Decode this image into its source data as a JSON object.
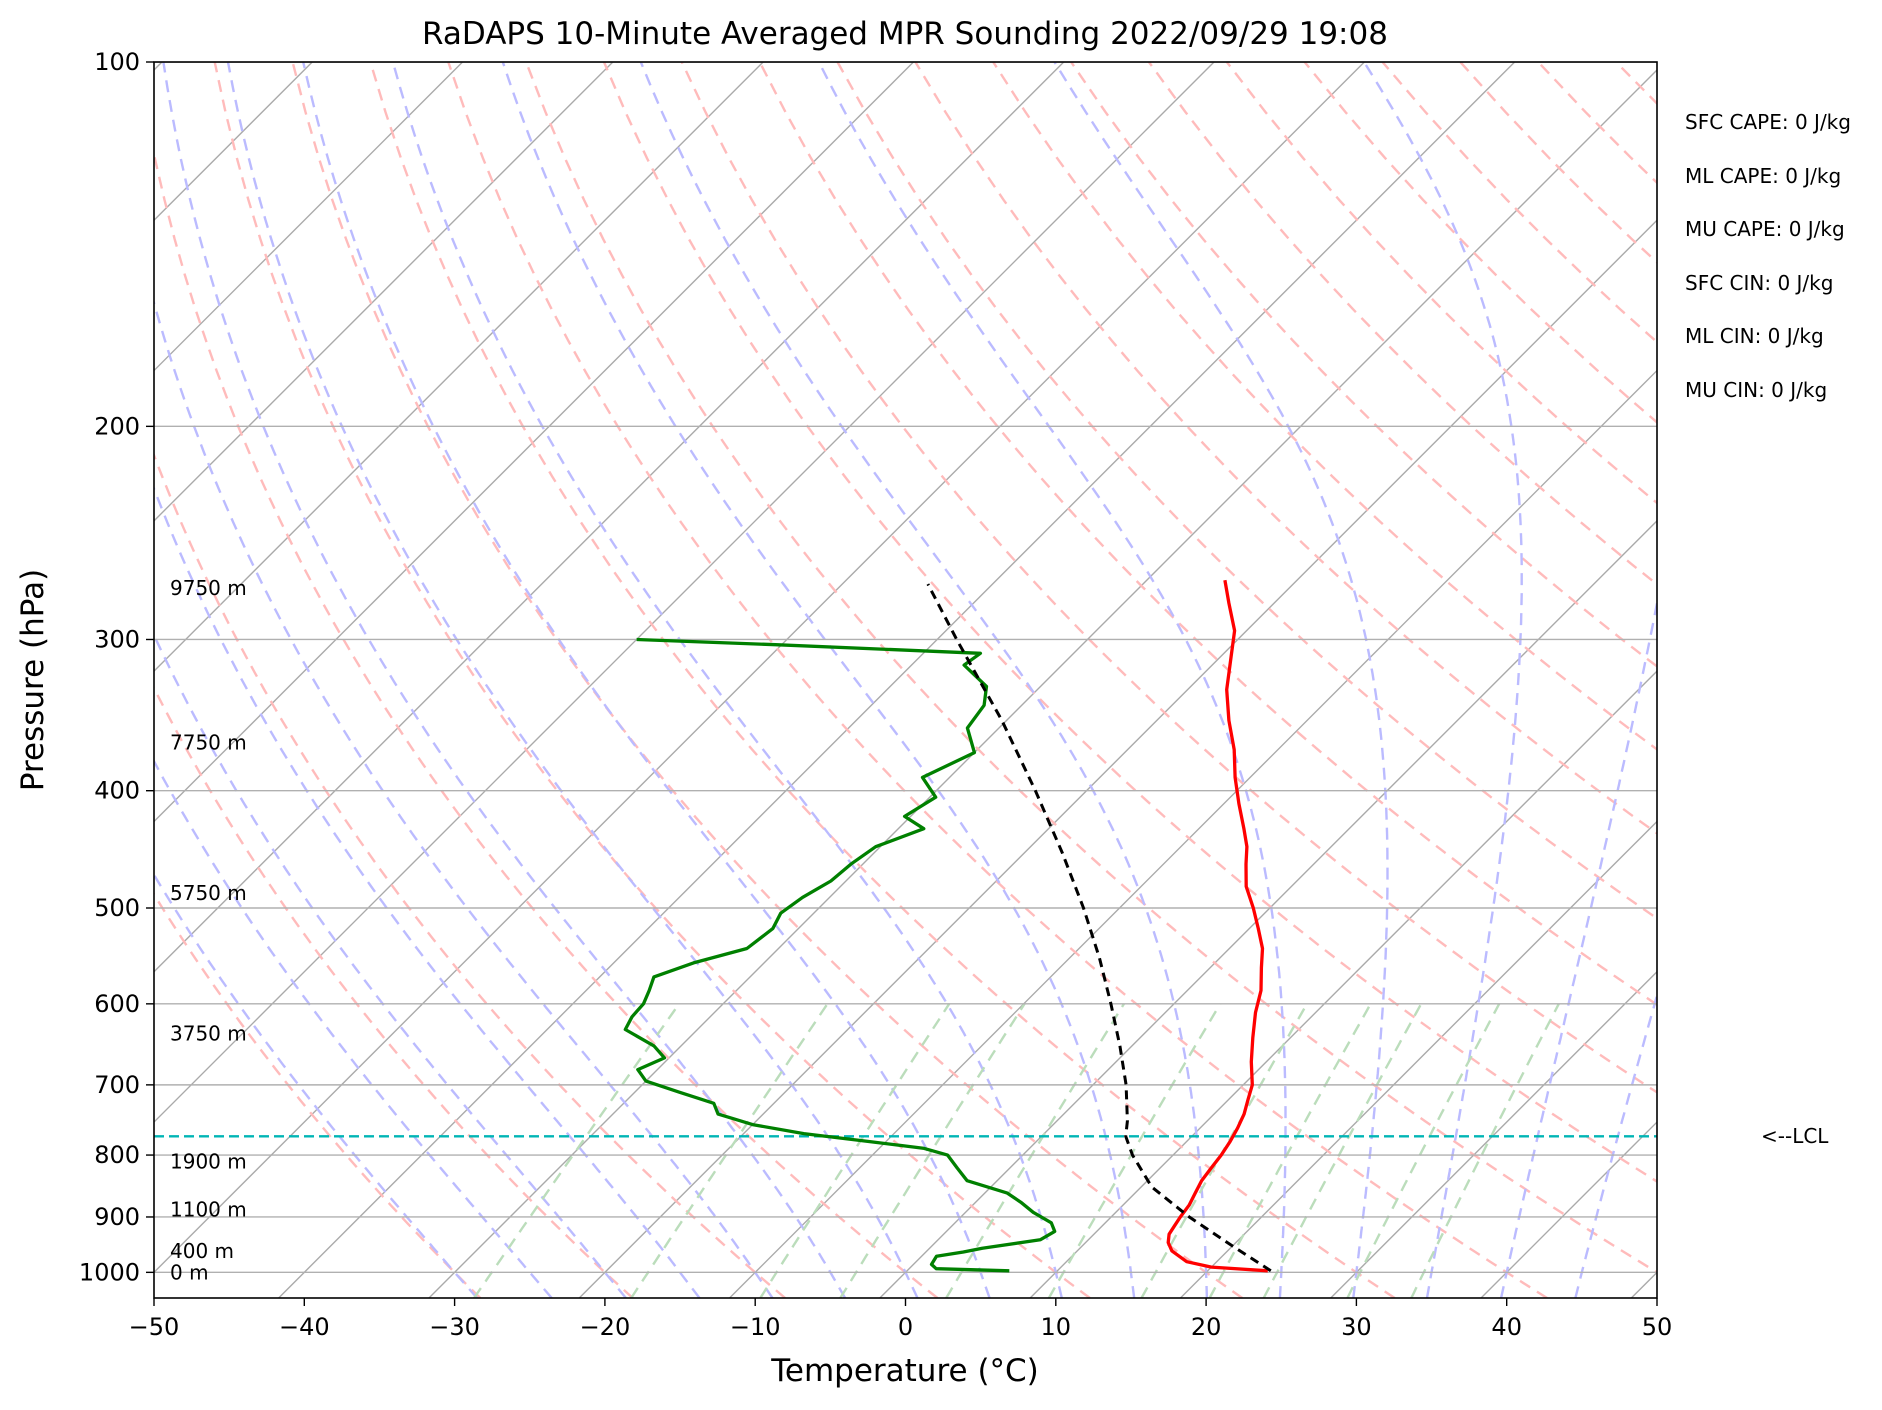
{
  "chart_data": {
    "type": "skew-t",
    "title": "RaDAPS 10-Minute Averaged MPR Sounding 2022/09/29 19:08",
    "xlabel": "Temperature (°C)",
    "ylabel": "Pressure (hPa)",
    "xlim": [
      -50,
      50
    ],
    "ylim": [
      1050,
      100
    ],
    "x_scale": "linear, skewed",
    "y_scale": "log",
    "xticks": [
      -50,
      -40,
      -30,
      -20,
      -10,
      0,
      10,
      20,
      30,
      40,
      50
    ],
    "xtick_labels": [
      "−50",
      "−40",
      "−30",
      "−20",
      "−10",
      "0",
      "10",
      "20",
      "30",
      "40",
      "50"
    ],
    "yticks": [
      100,
      200,
      300,
      400,
      500,
      600,
      700,
      800,
      900,
      1000
    ],
    "ytick_labels": [
      "100",
      "200",
      "300",
      "400",
      "500",
      "600",
      "700",
      "800",
      "900",
      "1000"
    ],
    "grid": true,
    "background_lines": {
      "isotherms": {
        "color": "#aaaaaa",
        "style": "solid"
      },
      "dry_adiabats": {
        "color": "#ffbbbb",
        "style": "dashed"
      },
      "moist_adiabats": {
        "color": "#bbbbff",
        "style": "dashed"
      },
      "mixing_ratio": {
        "color": "#bbddbb",
        "style": "dashed"
      }
    },
    "series": [
      {
        "color": "#ff0000",
        "points": [
          {
            "p": 997,
            "t": 24.0
          },
          {
            "p": 990,
            "t": 20.0
          },
          {
            "p": 980,
            "t": 18.0
          },
          {
            "p": 960,
            "t": 16.3
          },
          {
            "p": 945,
            "t": 15.5
          },
          {
            "p": 930,
            "t": 15.0
          },
          {
            "p": 915,
            "t": 14.8
          },
          {
            "p": 900,
            "t": 14.6
          },
          {
            "p": 880,
            "t": 14.4
          },
          {
            "p": 860,
            "t": 14.0
          },
          {
            "p": 840,
            "t": 13.6
          },
          {
            "p": 820,
            "t": 13.4
          },
          {
            "p": 800,
            "t": 13.2
          },
          {
            "p": 780,
            "t": 12.9
          },
          {
            "p": 760,
            "t": 12.5
          },
          {
            "p": 740,
            "t": 12.0
          },
          {
            "p": 720,
            "t": 11.3
          },
          {
            "p": 700,
            "t": 10.6
          },
          {
            "p": 670,
            "t": 9.0
          },
          {
            "p": 640,
            "t": 7.5
          },
          {
            "p": 610,
            "t": 6.0
          },
          {
            "p": 585,
            "t": 4.9
          },
          {
            "p": 560,
            "t": 3.4
          },
          {
            "p": 540,
            "t": 2.2
          },
          {
            "p": 520,
            "t": 0.6
          },
          {
            "p": 500,
            "t": -1.1
          },
          {
            "p": 480,
            "t": -3.0
          },
          {
            "p": 460,
            "t": -4.5
          },
          {
            "p": 445,
            "t": -5.6
          },
          {
            "p": 430,
            "t": -7.0
          },
          {
            "p": 410,
            "t": -9.0
          },
          {
            "p": 390,
            "t": -11.0
          },
          {
            "p": 370,
            "t": -12.9
          },
          {
            "p": 350,
            "t": -15.2
          },
          {
            "p": 330,
            "t": -17.4
          },
          {
            "p": 310,
            "t": -19.3
          },
          {
            "p": 295,
            "t": -20.8
          },
          {
            "p": 280,
            "t": -23.0
          },
          {
            "p": 268,
            "t": -24.8
          }
        ]
      },
      {
        "color": "#008000",
        "points": [
          {
            "p": 997,
            "t": 6.8
          },
          {
            "p": 993,
            "t": 1.8
          },
          {
            "p": 985,
            "t": 1.2
          },
          {
            "p": 970,
            "t": 1.0
          },
          {
            "p": 962,
            "t": 2.5
          },
          {
            "p": 955,
            "t": 3.5
          },
          {
            "p": 940,
            "t": 6.8
          },
          {
            "p": 925,
            "t": 7.2
          },
          {
            "p": 910,
            "t": 6.4
          },
          {
            "p": 892,
            "t": 4.5
          },
          {
            "p": 875,
            "t": 3.0
          },
          {
            "p": 860,
            "t": 1.5
          },
          {
            "p": 840,
            "t": -2.0
          },
          {
            "p": 820,
            "t": -3.5
          },
          {
            "p": 800,
            "t": -5.0
          },
          {
            "p": 790,
            "t": -7.0
          },
          {
            "p": 780,
            "t": -11.0
          },
          {
            "p": 768,
            "t": -16.0
          },
          {
            "p": 755,
            "t": -20.0
          },
          {
            "p": 740,
            "t": -23.0
          },
          {
            "p": 725,
            "t": -24.0
          },
          {
            "p": 710,
            "t": -27.0
          },
          {
            "p": 695,
            "t": -30.0
          },
          {
            "p": 680,
            "t": -31.3
          },
          {
            "p": 665,
            "t": -30.3
          },
          {
            "p": 650,
            "t": -31.8
          },
          {
            "p": 630,
            "t": -34.8
          },
          {
            "p": 615,
            "t": -35.2
          },
          {
            "p": 600,
            "t": -35.3
          },
          {
            "p": 585,
            "t": -35.8
          },
          {
            "p": 570,
            "t": -36.4
          },
          {
            "p": 555,
            "t": -34.7
          },
          {
            "p": 540,
            "t": -32.1
          },
          {
            "p": 520,
            "t": -31.7
          },
          {
            "p": 505,
            "t": -32.2
          },
          {
            "p": 490,
            "t": -31.8
          },
          {
            "p": 475,
            "t": -31.0
          },
          {
            "p": 460,
            "t": -30.8
          },
          {
            "p": 445,
            "t": -30.3
          },
          {
            "p": 430,
            "t": -28.3
          },
          {
            "p": 420,
            "t": -30.4
          },
          {
            "p": 405,
            "t": -29.6
          },
          {
            "p": 390,
            "t": -31.8
          },
          {
            "p": 372,
            "t": -30.0
          },
          {
            "p": 355,
            "t": -32.1
          },
          {
            "p": 340,
            "t": -32.5
          },
          {
            "p": 328,
            "t": -33.6
          },
          {
            "p": 315,
            "t": -36.5
          },
          {
            "p": 308,
            "t": -36.2
          },
          {
            "p": 303,
            "t": -50.4
          },
          {
            "p": 300,
            "t": -60.0
          }
        ]
      },
      {
        "color": "#000000",
        "style": "dashed",
        "points": [
          {
            "p": 997,
            "t": 24.2
          },
          {
            "p": 950,
            "t": 19.9
          },
          {
            "p": 900,
            "t": 15.2
          },
          {
            "p": 850,
            "t": 10.7
          },
          {
            "p": 800,
            "t": 7.3
          },
          {
            "p": 772,
            "t": 5.6
          },
          {
            "p": 750,
            "t": 4.7
          },
          {
            "p": 700,
            "t": 2.2
          },
          {
            "p": 650,
            "t": -0.8
          },
          {
            "p": 600,
            "t": -4.2
          },
          {
            "p": 550,
            "t": -8.0
          },
          {
            "p": 500,
            "t": -12.4
          },
          {
            "p": 450,
            "t": -17.5
          },
          {
            "p": 400,
            "t": -23.4
          },
          {
            "p": 350,
            "t": -30.3
          },
          {
            "p": 300,
            "t": -38.7
          },
          {
            "p": 270,
            "t": -44.3
          }
        ]
      }
    ],
    "lcl": {
      "p": 772,
      "label": "<--LCL",
      "color": "#00b5b5"
    },
    "height_labels": [
      {
        "p": 1000,
        "label": "0 m"
      },
      {
        "p": 960,
        "label": "400 m"
      },
      {
        "p": 887,
        "label": "1100 m"
      },
      {
        "p": 810,
        "label": "1900 m"
      },
      {
        "p": 635,
        "label": "3750 m"
      },
      {
        "p": 486,
        "label": "5750 m"
      },
      {
        "p": 365,
        "label": "7750 m"
      },
      {
        "p": 272,
        "label": "9750 m"
      }
    ],
    "indices": [
      {
        "label": "SFC CAPE: 0 J/kg"
      },
      {
        "label": "ML CAPE: 0 J/kg"
      },
      {
        "label": "MU CAPE: 0 J/kg"
      },
      {
        "label": "SFC CIN: 0 J/kg"
      },
      {
        "label": "ML CIN: 0 J/kg"
      },
      {
        "label": "MU CIN: 0 J/kg"
      }
    ]
  }
}
